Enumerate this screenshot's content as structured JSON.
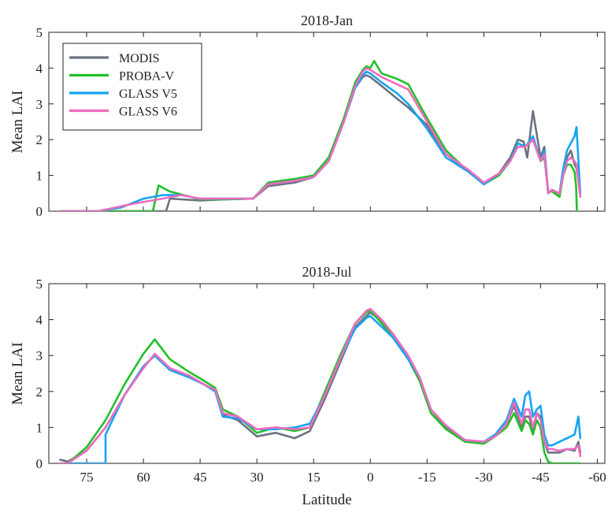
{
  "chart_data": [
    {
      "type": "line",
      "title": "2018-Jan",
      "xlabel": "",
      "ylabel": "Mean LAI",
      "xlim": [
        85,
        -62
      ],
      "ylim": [
        0,
        5
      ],
      "xticks": [
        75,
        60,
        45,
        30,
        15,
        0,
        -15,
        -30,
        -45,
        -60
      ],
      "xtick_labels": [],
      "yticks": [
        0,
        1,
        2,
        3,
        4,
        5
      ],
      "ytick_labels": [
        "0",
        "1",
        "2",
        "3",
        "4",
        "5"
      ],
      "legend_position": "top-left",
      "series": [
        {
          "name": "MODIS",
          "color": "#6b7280",
          "x": [
            82,
            72,
            63,
            55,
            54,
            53,
            45,
            38,
            31,
            27,
            20,
            15,
            11,
            7,
            4,
            2,
            1,
            0,
            -3,
            -7,
            -10,
            -15,
            -20,
            -26,
            -30,
            -34,
            -37,
            -39,
            -40.5,
            -41.5,
            -43,
            -45,
            -46,
            -47,
            -48,
            -50,
            -51,
            -52,
            -53,
            -54,
            -54.5,
            -55.5
          ],
          "y": [
            0,
            0,
            0,
            0,
            0,
            0.35,
            0.3,
            0.33,
            0.35,
            0.7,
            0.8,
            0.95,
            1.4,
            2.5,
            3.45,
            3.75,
            3.8,
            3.75,
            3.5,
            3.15,
            2.9,
            2.4,
            1.6,
            1.1,
            0.8,
            1.05,
            1.5,
            2.0,
            1.95,
            1.5,
            2.8,
            1.5,
            1.8,
            0.5,
            0.6,
            0.4,
            1.1,
            1.5,
            1.7,
            1.3,
            1.2,
            0.5
          ]
        },
        {
          "name": "PROBA-V",
          "color": "#22c02a",
          "x": [
            82,
            63,
            58,
            57.5,
            56,
            53,
            45,
            38,
            31,
            27,
            20,
            15,
            11,
            7,
            4,
            2,
            1,
            0,
            -1,
            -3,
            -7,
            -10,
            -15,
            -20,
            -26,
            -30,
            -34,
            -37,
            -39,
            -41,
            -43,
            -45,
            -46,
            -47,
            -48,
            -50,
            -51,
            -52,
            -53,
            -54,
            -54.4,
            -54.6
          ],
          "y": [
            0,
            0,
            0,
            0,
            0.72,
            0.55,
            0.33,
            0.33,
            0.35,
            0.8,
            0.9,
            1.0,
            1.5,
            2.6,
            3.6,
            3.95,
            4.05,
            4.0,
            4.2,
            3.85,
            3.7,
            3.55,
            2.6,
            1.7,
            1.1,
            0.75,
            1.0,
            1.4,
            1.9,
            1.8,
            2.0,
            1.4,
            1.5,
            0.55,
            0.55,
            0.4,
            1.0,
            1.3,
            1.3,
            1.1,
            0.7,
            0
          ]
        },
        {
          "name": "GLASS V5",
          "color": "#16a4f2",
          "x": [
            82,
            72,
            66,
            60,
            55,
            50,
            45,
            38,
            31,
            27,
            20,
            15,
            11,
            7,
            4,
            2,
            1,
            0,
            -3,
            -7,
            -10,
            -15,
            -20,
            -26,
            -30,
            -34,
            -37,
            -39,
            -41,
            -43,
            -45,
            -46,
            -47,
            -48,
            -50,
            -51,
            -52,
            -53,
            -54,
            -54.5,
            -55.5
          ],
          "y": [
            0,
            0,
            0.1,
            0.35,
            0.45,
            0.45,
            0.35,
            0.35,
            0.35,
            0.75,
            0.85,
            0.95,
            1.4,
            2.5,
            3.45,
            3.8,
            3.9,
            3.85,
            3.6,
            3.3,
            3.0,
            2.3,
            1.5,
            1.1,
            0.75,
            1.05,
            1.4,
            1.9,
            1.8,
            2.1,
            1.4,
            1.7,
            0.5,
            0.6,
            0.5,
            1.2,
            1.7,
            1.9,
            2.1,
            2.35,
            0.5
          ]
        },
        {
          "name": "GLASS V6",
          "color": "#f06bbf",
          "x": [
            82,
            72,
            63,
            55,
            50,
            45,
            38,
            31,
            27,
            20,
            15,
            11,
            7,
            4,
            2,
            1,
            0,
            -3,
            -7,
            -10,
            -15,
            -20,
            -26,
            -30,
            -34,
            -37,
            -39,
            -41,
            -43,
            -45,
            -46,
            -47,
            -48,
            -50,
            -51,
            -52,
            -53,
            -54,
            -54.5,
            -55.5
          ],
          "y": [
            0,
            0,
            0.2,
            0.35,
            0.45,
            0.35,
            0.35,
            0.35,
            0.75,
            0.85,
            0.95,
            1.4,
            2.5,
            3.5,
            3.9,
            4.0,
            3.95,
            3.75,
            3.55,
            3.4,
            2.5,
            1.6,
            1.15,
            0.8,
            1.05,
            1.4,
            1.8,
            1.8,
            2.0,
            1.4,
            1.6,
            0.5,
            0.6,
            0.5,
            1.0,
            1.4,
            1.5,
            1.4,
            1.3,
            0.4
          ]
        }
      ]
    },
    {
      "type": "line",
      "title": "2018-Jul",
      "xlabel": "Latitude",
      "ylabel": "Mean LAI",
      "xlim": [
        85,
        -62
      ],
      "ylim": [
        0,
        5
      ],
      "xticks": [
        75,
        60,
        45,
        30,
        15,
        0,
        -15,
        -30,
        -45,
        -60
      ],
      "xtick_labels": [
        "75",
        "60",
        "45",
        "30",
        "15",
        "0",
        "-15",
        "-30",
        "-45",
        "-60"
      ],
      "yticks": [
        0,
        1,
        2,
        3,
        4,
        5
      ],
      "ytick_labels": [
        "0",
        "1",
        "2",
        "3",
        "4",
        "5"
      ],
      "series": [
        {
          "name": "MODIS",
          "color": "#6b7280",
          "x": [
            82,
            80,
            75,
            70,
            65,
            60,
            57,
            53,
            48,
            44,
            41,
            39,
            35,
            30,
            25,
            20,
            16,
            12,
            8,
            4,
            1,
            0,
            -3,
            -6,
            -10,
            -13,
            -16,
            -20,
            -25,
            -30,
            -33,
            -36,
            -38,
            -40,
            -41,
            -42,
            -43,
            -44,
            -45,
            -46,
            -47,
            -48,
            -50,
            -52,
            -54,
            -55,
            -55.5
          ],
          "y": [
            0.1,
            0.05,
            0.35,
            1.0,
            1.9,
            2.7,
            3.0,
            2.6,
            2.4,
            2.2,
            2.0,
            1.35,
            1.2,
            0.75,
            0.85,
            0.7,
            0.9,
            1.8,
            2.8,
            3.8,
            4.1,
            4.2,
            3.95,
            3.6,
            3.0,
            2.4,
            1.5,
            1.0,
            0.65,
            0.55,
            0.75,
            1.1,
            1.6,
            1.0,
            1.3,
            1.3,
            0.9,
            1.4,
            1.3,
            0.6,
            0.3,
            0.3,
            0.3,
            0.4,
            0.35,
            0.6,
            0.3
          ]
        },
        {
          "name": "PROBA-V",
          "color": "#22c02a",
          "x": [
            82,
            80,
            75,
            70,
            65,
            60,
            57,
            53,
            48,
            44,
            41,
            39,
            35,
            30,
            25,
            20,
            16,
            12,
            8,
            4,
            1,
            0,
            -3,
            -6,
            -10,
            -13,
            -16,
            -20,
            -25,
            -30,
            -33,
            -36,
            -38,
            -40,
            -41,
            -42,
            -43,
            -44,
            -45,
            -46,
            -47,
            -48,
            -50,
            -52,
            -54,
            -55,
            -55.5
          ],
          "y": [
            0,
            0,
            0.45,
            1.2,
            2.2,
            3.05,
            3.45,
            2.9,
            2.55,
            2.3,
            2.1,
            1.5,
            1.3,
            0.85,
            1.0,
            0.9,
            1.0,
            2.0,
            3.0,
            3.9,
            4.2,
            4.25,
            3.9,
            3.5,
            2.9,
            2.3,
            1.4,
            0.95,
            0.6,
            0.55,
            0.75,
            1.0,
            1.4,
            0.9,
            1.2,
            1.1,
            0.8,
            1.2,
            1.0,
            0.3,
            0.05,
            0,
            0,
            0,
            0,
            0,
            0
          ]
        },
        {
          "name": "GLASS V5",
          "color": "#16a4f2",
          "x": [
            82,
            80,
            72,
            70,
            70,
            65,
            60,
            57,
            53,
            48,
            44,
            41,
            39,
            35,
            30,
            25,
            20,
            16,
            12,
            8,
            4,
            1,
            0,
            -3,
            -6,
            -10,
            -13,
            -16,
            -20,
            -25,
            -30,
            -33,
            -36,
            -38,
            -40,
            -41,
            -42,
            -43,
            -44,
            -45,
            -46,
            -47,
            -48,
            -50,
            -52,
            -54,
            -55,
            -55.5
          ],
          "y": [
            0,
            0,
            0,
            0,
            0.8,
            1.9,
            2.7,
            3.0,
            2.6,
            2.4,
            2.2,
            2.0,
            1.3,
            1.25,
            0.95,
            0.95,
            1.0,
            1.1,
            1.9,
            2.9,
            3.75,
            4.05,
            4.1,
            3.8,
            3.5,
            2.9,
            2.4,
            1.5,
            1.05,
            0.65,
            0.6,
            0.8,
            1.2,
            1.8,
            1.3,
            1.9,
            2.0,
            1.3,
            1.5,
            1.6,
            0.8,
            0.5,
            0.5,
            0.6,
            0.7,
            0.8,
            1.3,
            0.7
          ]
        },
        {
          "name": "GLASS V6",
          "color": "#f06bbf",
          "x": [
            82,
            80,
            75,
            70,
            65,
            60,
            57,
            53,
            48,
            44,
            41,
            39,
            35,
            30,
            25,
            20,
            16,
            12,
            8,
            4,
            1,
            0,
            -3,
            -6,
            -10,
            -13,
            -16,
            -20,
            -25,
            -30,
            -33,
            -36,
            -38,
            -40,
            -41,
            -42,
            -43,
            -44,
            -45,
            -46,
            -47,
            -48,
            -50,
            -52,
            -54,
            -55,
            -55.5
          ],
          "y": [
            0,
            0,
            0.35,
            1.0,
            1.9,
            2.65,
            3.05,
            2.65,
            2.45,
            2.2,
            2.05,
            1.4,
            1.3,
            0.95,
            1.0,
            0.95,
            1.0,
            1.9,
            2.9,
            3.9,
            4.25,
            4.3,
            4.0,
            3.6,
            3.0,
            2.4,
            1.5,
            1.05,
            0.65,
            0.6,
            0.75,
            1.1,
            1.7,
            1.1,
            1.5,
            1.5,
            1.0,
            1.4,
            1.2,
            0.6,
            0.4,
            0.4,
            0.35,
            0.4,
            0.4,
            0.5,
            0.2
          ]
        }
      ]
    }
  ]
}
